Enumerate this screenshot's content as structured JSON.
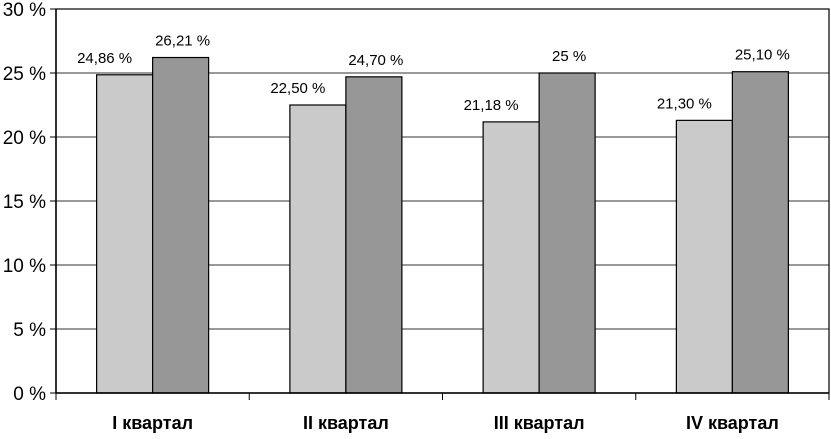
{
  "chart_data": {
    "type": "bar",
    "title": "",
    "xlabel": "",
    "ylabel": "",
    "categories": [
      "I  квартал",
      "II  квартал",
      "III  квартал",
      "IV  квартал"
    ],
    "series": [
      {
        "color": "#cacaca",
        "values": [
          24.86,
          22.5,
          21.18,
          21.3
        ],
        "labels": [
          "24,86 %",
          "22,50 %",
          "21,18 %",
          "21,30 %"
        ]
      },
      {
        "color": "#979797",
        "values": [
          26.21,
          24.7,
          25.0,
          25.1
        ],
        "labels": [
          "26,21 %",
          "24,70 %",
          "25 %",
          "25,10 %"
        ]
      }
    ],
    "ylim": [
      0,
      30
    ],
    "y_ticks": [
      0,
      5,
      10,
      15,
      20,
      25,
      30
    ],
    "y_tick_labels": [
      "0 %",
      "5 %",
      "10 %",
      "15 %",
      "20 %",
      "25 %",
      "30 %"
    ],
    "grid": true,
    "legend": "none"
  }
}
